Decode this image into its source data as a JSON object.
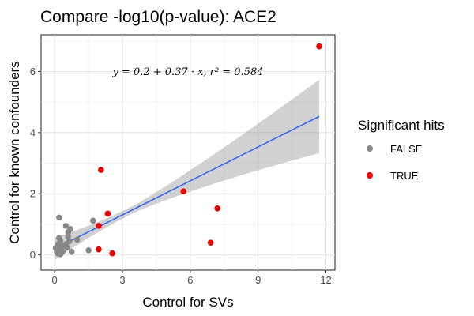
{
  "chart_data": {
    "type": "scatter",
    "title": "Compare -log10(p-value): ACE2",
    "xlabel": "Control for SVs",
    "ylabel": "Control for known confounders",
    "xlim": [
      -0.6,
      12.4
    ],
    "ylim": [
      -0.5,
      7.2
    ],
    "x_ticks": [
      0,
      3,
      6,
      9,
      12
    ],
    "y_ticks": [
      0,
      2,
      4,
      6
    ],
    "x_minor_ticks": [
      1.5,
      4.5,
      7.5,
      10.5
    ],
    "y_minor_ticks": [
      1,
      3,
      5,
      7
    ],
    "grid": true,
    "legend_position": "right",
    "annotation": "y = 0.2 + 0.37 · x,  r² = 0.584",
    "fit": {
      "intercept": 0.2,
      "slope": 0.37,
      "x_range": [
        0,
        11.7
      ],
      "band_start_halfwidth": 0.12,
      "band_end_halfwidth": 1.2
    },
    "legend": {
      "title": "Significant hits",
      "entries": [
        {
          "label": "FALSE",
          "color": "#888888"
        },
        {
          "label": "TRUE",
          "color": "#ee0000"
        }
      ]
    },
    "series": [
      {
        "name": "FALSE",
        "color": "#888888",
        "points": [
          [
            0.05,
            0.22
          ],
          [
            0.1,
            0.1
          ],
          [
            0.15,
            0.05
          ],
          [
            0.2,
            0.2
          ],
          [
            0.2,
            0.55
          ],
          [
            0.25,
            0.45
          ],
          [
            0.3,
            0.15
          ],
          [
            0.35,
            0.1
          ],
          [
            0.25,
            0.02
          ],
          [
            0.15,
            0.35
          ],
          [
            0.4,
            0.3
          ],
          [
            0.5,
            0.95
          ],
          [
            0.55,
            0.25
          ],
          [
            0.6,
            0.6
          ],
          [
            0.65,
            0.45
          ],
          [
            0.7,
            0.85
          ],
          [
            0.75,
            0.1
          ],
          [
            0.6,
            0.75
          ],
          [
            0.5,
            0.35
          ],
          [
            0.2,
            1.22
          ],
          [
            1.0,
            0.5
          ],
          [
            1.5,
            0.15
          ],
          [
            1.7,
            1.12
          ]
        ]
      },
      {
        "name": "TRUE",
        "color": "#ee0000",
        "points": [
          [
            2.05,
            2.78
          ],
          [
            2.35,
            1.35
          ],
          [
            1.95,
            0.95
          ],
          [
            1.95,
            0.18
          ],
          [
            2.55,
            0.05
          ],
          [
            5.7,
            2.08
          ],
          [
            7.2,
            1.52
          ],
          [
            6.9,
            0.4
          ],
          [
            11.7,
            6.82
          ]
        ]
      }
    ]
  }
}
